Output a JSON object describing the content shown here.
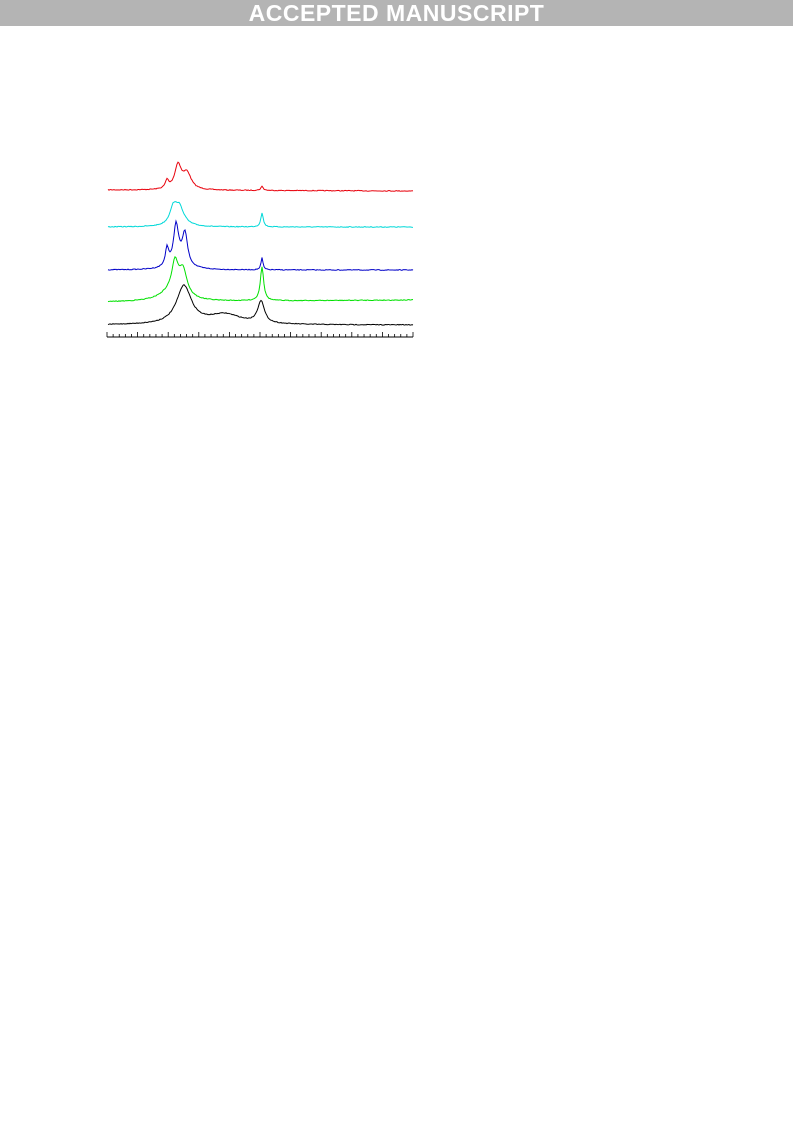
{
  "header": {
    "banner": "ACCEPTED MANUSCRIPT"
  }
}
